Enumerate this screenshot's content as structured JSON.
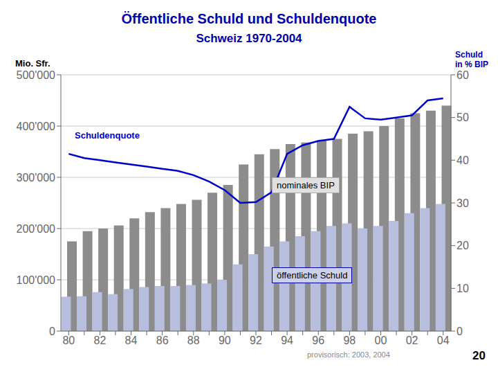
{
  "chart_data": {
    "type": "bar",
    "title": "Öffentliche Schuld und Schuldenquote",
    "subtitle": "Schweiz 1970-2004",
    "ylabel": "Mio. Sfr.",
    "y2label": "Schuld\nin % BIP",
    "annotations": [
      "provisorisch: 2003, 2004",
      "20"
    ],
    "categories": [
      "80",
      null,
      "82",
      null,
      "84",
      null,
      "86",
      null,
      "88",
      null,
      "90",
      null,
      "92",
      null,
      "94",
      null,
      "96",
      null,
      "98",
      null,
      "00",
      null,
      "02",
      null,
      "04"
    ],
    "series": [
      {
        "name": "nominales BIP",
        "color": "#8c8c8c",
        "values": [
          175000,
          195000,
          200000,
          206000,
          220000,
          232000,
          240000,
          248000,
          256000,
          270000,
          285000,
          325000,
          345000,
          355000,
          365000,
          368000,
          372000,
          375000,
          385000,
          390000,
          400000,
          415000,
          425000,
          430000,
          440000
        ]
      },
      {
        "name": "öffentliche Schuld",
        "color": "#b8bede",
        "values": [
          67000,
          68000,
          76000,
          72000,
          82000,
          86000,
          88000,
          88000,
          90000,
          93000,
          100000,
          130000,
          150000,
          165000,
          175000,
          185000,
          195000,
          205000,
          210000,
          200000,
          205000,
          215000,
          230000,
          240000,
          248000
        ]
      },
      {
        "name": "Schuldenquote",
        "type": "line",
        "axis": "y2",
        "color": "#0000cc",
        "values": [
          41.5,
          40.5,
          40.0,
          39.5,
          39.0,
          38.5,
          38.0,
          37.5,
          36.5,
          35.0,
          33.0,
          30.0,
          30.2,
          32.5,
          41.5,
          43.5,
          44.5,
          45.0,
          52.5,
          49.8,
          49.5,
          50.0,
          50.5,
          54.0,
          54.5
        ]
      }
    ],
    "ylim": [
      0,
      500000
    ],
    "yticks": [
      0,
      {
        "value": 100000,
        "label": "100'000"
      },
      {
        "value": 200000,
        "label": "200'000"
      },
      {
        "value": 300000,
        "label": "300'000"
      },
      {
        "value": 400000,
        "label": "400'000"
      },
      {
        "value": 500000,
        "label": "500'000"
      }
    ],
    "y2lim": [
      0,
      60
    ],
    "y2ticks": [
      0,
      10,
      20,
      30,
      40,
      50,
      60
    ],
    "grid": true
  }
}
